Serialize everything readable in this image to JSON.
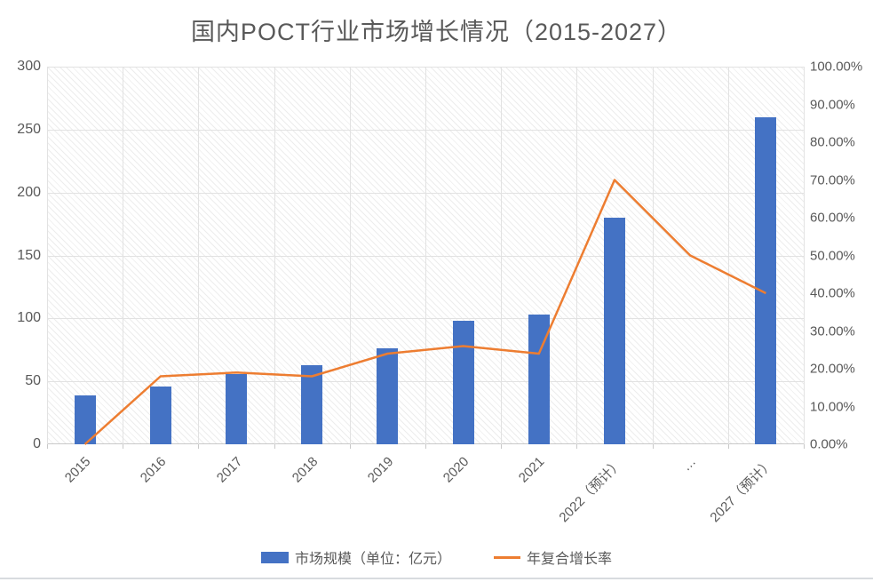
{
  "title": "国内POCT行业市场增长情况（2015-2027）",
  "chart_data": {
    "type": "bar",
    "subtype": "combo-bar-line",
    "title": "国内POCT行业市场增长情况（2015-2027）",
    "categories": [
      "2015",
      "2016",
      "2017",
      "2018",
      "2019",
      "2020",
      "2021",
      "2022（预计）",
      "…",
      "2027（预计）"
    ],
    "series": [
      {
        "name": "市场规模（单位：亿元）",
        "type": "bar",
        "axis": "left",
        "color": "#4472C4",
        "values": [
          39,
          46,
          56,
          63,
          76,
          98,
          103,
          180,
          null,
          260
        ]
      },
      {
        "name": "年复合增长率",
        "type": "line",
        "axis": "right",
        "color": "#ED7D31",
        "values_percent": [
          0,
          18,
          19,
          18,
          24,
          26,
          24,
          70,
          50,
          40
        ]
      }
    ],
    "left_axis": {
      "min": 0,
      "max": 300,
      "step": 50,
      "tick_labels": [
        "0",
        "50",
        "100",
        "150",
        "200",
        "250",
        "300"
      ]
    },
    "right_axis": {
      "min": 0,
      "max": 100,
      "step": 10,
      "tick_labels": [
        "0.00%",
        "10.00%",
        "20.00%",
        "30.00%",
        "40.00%",
        "50.00%",
        "60.00%",
        "70.00%",
        "80.00%",
        "90.00%",
        "100.00%"
      ]
    },
    "grid": true,
    "plot_fill": "diagonal-hatch",
    "legend_position": "bottom"
  },
  "legend": {
    "items": [
      {
        "label": "市场规模（单位：亿元）",
        "swatch": "bar",
        "color": "#4472C4"
      },
      {
        "label": "年复合增长率",
        "swatch": "line",
        "color": "#ED7D31"
      }
    ]
  },
  "colors": {
    "bar": "#4472C4",
    "line": "#ED7D31",
    "text": "#595959",
    "grid": "#E2E2E2",
    "axis": "#C9C9C9",
    "bottom_border": "#D8DBDF"
  }
}
